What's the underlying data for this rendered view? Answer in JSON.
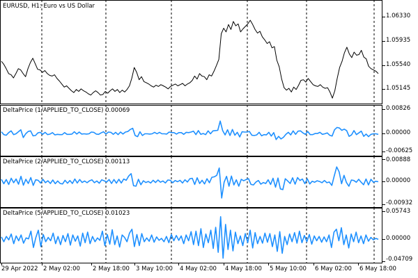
{
  "window": {
    "symbol_title": "EURUSD, H1:  Euro vs US Dollar"
  },
  "colors": {
    "price_line": "#000000",
    "indicator_line": "#1e90ff",
    "grid": "#000000",
    "background": "#ffffff"
  },
  "time_axis": {
    "labels": [
      "29 Apr 2022",
      "2 May 02:00",
      "2 May 18:00",
      "3 May 10:00",
      "4 May 02:00",
      "4 May 18:00",
      "5 May 10:00",
      "6 May 02:00",
      "6 May 18:00"
    ]
  },
  "chart_data": [
    {
      "type": "line",
      "pane": "main",
      "title": "EURUSD, H1:  Euro vs US Dollar",
      "ylim": [
        1.049,
        1.066
      ],
      "yticks": [
        "1.06330",
        "1.05935",
        "1.05540",
        "1.05145"
      ],
      "series": [
        {
          "values": [
            1.056,
            1.0555,
            1.0548,
            1.054,
            1.0538,
            1.0533,
            1.054,
            1.0548,
            1.0546,
            1.054,
            1.0535,
            1.0548,
            1.0558,
            1.0565,
            1.0556,
            1.0547,
            1.0546,
            1.0542,
            1.0545,
            1.054,
            1.0537,
            1.0536,
            1.0538,
            1.0532,
            1.0528,
            1.0523,
            1.0518,
            1.052,
            1.0516,
            1.0512,
            1.0509,
            1.0514,
            1.0511,
            1.0515,
            1.0512,
            1.051,
            1.0507,
            1.0505,
            1.0509,
            1.0512,
            1.0509,
            1.0505,
            1.0506,
            1.0511,
            1.0508,
            1.0512,
            1.0515,
            1.0511,
            1.0514,
            1.0509,
            1.0513,
            1.051,
            1.0514,
            1.052,
            1.0533,
            1.055,
            1.0542,
            1.053,
            1.0535,
            1.0527,
            1.0525,
            1.0523,
            1.052,
            1.0518,
            1.0521,
            1.0519,
            1.0522,
            1.052,
            1.0518,
            1.0515,
            1.0519,
            1.0521,
            1.0523,
            1.052,
            1.0522,
            1.0524,
            1.052,
            1.0523,
            1.0525,
            1.0529,
            1.0536,
            1.0531,
            1.054,
            1.0536,
            1.0535,
            1.053,
            1.0538,
            1.0536,
            1.0544,
            1.0553,
            1.0563,
            1.0605,
            1.0614,
            1.0608,
            1.062,
            1.0612,
            1.0625,
            1.0618,
            1.0621,
            1.0608,
            1.0613,
            1.0617,
            1.0621,
            1.0627,
            1.062,
            1.0612,
            1.0606,
            1.0609,
            1.06,
            1.0595,
            1.0589,
            1.0592,
            1.0582,
            1.0584,
            1.0562,
            1.0551,
            1.0531,
            1.0517,
            1.0513,
            1.0516,
            1.051,
            1.0518,
            1.0514,
            1.0521,
            1.0529,
            1.053,
            1.0526,
            1.0532,
            1.0527,
            1.0522,
            1.052,
            1.0519,
            1.0522,
            1.0518,
            1.0516,
            1.0517,
            1.051,
            1.05,
            1.0512,
            1.0532,
            1.055,
            1.056,
            1.0574,
            1.0583,
            1.0572,
            1.0566,
            1.0575,
            1.057,
            1.0571,
            1.0578,
            1.0567,
            1.0564,
            1.0552,
            1.0548,
            1.0546,
            1.0544,
            1.054
          ]
        }
      ]
    },
    {
      "type": "line",
      "pane": "indicator1",
      "title": "DeltaPrice (1/APPLIED_TO_CLOSE) 0.00069",
      "ylim": [
        -0.0078,
        0.0098
      ],
      "yticks": [
        "0.00826",
        "0.00000",
        "-0.00625"
      ],
      "series": [
        {
          "values": [
            0.0005,
            -0.0005,
            -0.0007,
            0.0002,
            0.0008,
            -0.0005,
            -0.0002,
            0.0005,
            0.0012,
            -0.0015,
            -0.0002,
            0.0006,
            0.0008,
            -0.0009,
            -0.0008,
            0.0001,
            0.0003,
            -0.0004,
            0.0003,
            -0.0005,
            -0.0003,
            0.0002,
            -0.0006,
            -0.0004,
            -0.0005,
            -0.0005,
            0.0002,
            -0.0004,
            -0.0004,
            -0.0003,
            0.0005,
            -0.0003,
            0.0004,
            -0.0003,
            -0.0002,
            -0.0003,
            -0.0002,
            0.0004,
            0.0003,
            -0.0003,
            -0.0004,
            0.0001,
            0.0005,
            -0.0003,
            0.0004,
            0.0003,
            -0.0004,
            0.0003,
            -0.0005,
            0.0004,
            -0.0003,
            0.0004,
            0.0006,
            0.0013,
            0.0017,
            -0.0008,
            -0.0012,
            0.0005,
            -0.0008,
            -0.0002,
            -0.0002,
            -0.0003,
            -0.0002,
            0.0003,
            -0.0002,
            0.0003,
            -0.0002,
            -0.0002,
            -0.0003,
            0.0004,
            0.0002,
            0.0002,
            -0.0003,
            0.0002,
            0.0002,
            -0.0004,
            0.0003,
            0.0002,
            0.0004,
            0.0007,
            -0.0005,
            0.0009,
            -0.0004,
            -0.0001,
            -0.0005,
            0.0008,
            -0.0002,
            0.0008,
            0.0009,
            0.001,
            0.0042,
            0.0009,
            -0.0006,
            0.0012,
            -0.0008,
            0.0013,
            -0.0007,
            0.0003,
            -0.0013,
            0.0005,
            0.0004,
            0.0004,
            0.0006,
            -0.0007,
            -0.0008,
            -0.0006,
            0.0003,
            -0.0009,
            -0.0005,
            -0.0006,
            0.0003,
            -0.001,
            0.0002,
            -0.0022,
            -0.0011,
            -0.002,
            -0.0014,
            -0.0004,
            0.0003,
            -0.0006,
            0.0008,
            -0.0004,
            0.0007,
            0.0008,
            0.0001,
            -0.0004,
            0.0006,
            -0.0005,
            -0.0005,
            -0.0001,
            -0.0001,
            0.0003,
            -0.0004,
            -0.0002,
            0.0001,
            -0.0007,
            -0.001,
            0.0012,
            0.002,
            0.0018,
            0.001,
            0.0014,
            0.0009,
            -0.0011,
            -0.0006,
            0.0009,
            -0.0005,
            0.0001,
            0.0007,
            -0.0011,
            -0.0003,
            -0.0012,
            -0.0004,
            -0.0002,
            -0.0002,
            -0.0004
          ]
        }
      ]
    },
    {
      "type": "line",
      "pane": "indicator2",
      "title": "DeltaPrice (2/APPLIED_TO_CLOSE) 0.00113",
      "ylim": [
        -0.0105,
        0.0101
      ],
      "yticks": [
        "0.00888",
        "0.00000",
        "-0.00932"
      ],
      "series": [
        {
          "values": [
            0.0008,
            -0.001,
            0.0007,
            -0.0013,
            0.0012,
            -0.0006,
            0.0009,
            -0.0012,
            0.002,
            -0.0016,
            0.0008,
            -0.0009,
            0.0015,
            -0.0017,
            0.0006,
            0.0004,
            -0.0007,
            0.0008,
            -0.0006,
            0.0002,
            -0.0009,
            0.0005,
            -0.001,
            0.0001,
            -0.0009,
            -0.0011,
            0.0004,
            -0.0008,
            0.0003,
            -0.0009,
            0.0009,
            -0.0007,
            0.0007,
            -0.0005,
            0.0001,
            -0.0006,
            0.0002,
            0.0006,
            -0.0006,
            0.0001,
            -0.0008,
            0.0006,
            0.0002,
            -0.0003,
            0.0007,
            -0.0009,
            0.0007,
            -0.0008,
            0.0008,
            -0.0007,
            0.0009,
            0.0004,
            0.0021,
            0.0031,
            -0.0018,
            -0.002,
            0.0008,
            -0.0014,
            0.0002,
            -0.0005,
            -0.0001,
            -0.0007,
            0.0004,
            -0.0005,
            0.0005,
            -0.0004,
            0.0001,
            -0.0007,
            0.0005,
            0.0004,
            -0.0006,
            0.0003,
            -0.0002,
            0.0004,
            -0.0007,
            0.0006,
            -0.0003,
            0.001,
            0.0012,
            -0.0013,
            0.0014,
            -0.0009,
            0.0004,
            -0.0011,
            0.001,
            -0.0006,
            0.0016,
            0.0018,
            0.0024,
            0.0054,
            -0.0068,
            -0.0004,
            0.002,
            -0.002,
            0.0021,
            -0.0015,
            0.0006,
            -0.002,
            0.0008,
            0.0002,
            0.0007,
            0.001,
            -0.0013,
            -0.0015,
            -0.0003,
            0.0003,
            -0.0012,
            -0.0005,
            -0.0009,
            0.0006,
            -0.0013,
            0.0012,
            -0.0024,
            0.0013,
            -0.0031,
            -0.0034,
            0.001,
            0.0001,
            -0.0009,
            0.0014,
            -0.0012,
            0.0015,
            0.0003,
            0.0009,
            -0.001,
            0.001,
            -0.0011,
            0.0,
            -0.0004,
            0.0002,
            -0.0001,
            -0.0006,
            0.0003,
            -0.0006,
            -0.0003,
            -0.0017,
            0.0022,
            0.0058,
            0.0038,
            -0.001,
            0.0024,
            -0.0005,
            -0.002,
            0.0005,
            0.0003,
            -0.0004,
            0.0008,
            -0.0004,
            -0.0014,
            0.0009,
            -0.0015,
            0.0008,
            -0.0004,
            0.0,
            -0.0002
          ]
        }
      ]
    },
    {
      "type": "line",
      "pane": "indicator3",
      "title": "DeltaPrice (5/APPLIED_TO_CLOSE) 0.01023",
      "ylim": [
        -0.051,
        0.0645
      ],
      "yticks": [
        "0.05743",
        "0.00000",
        "-0.04709"
      ],
      "series": [
        {
          "values": [
            0.004,
            -0.006,
            0.005,
            -0.002,
            0.01,
            -0.01,
            0.006,
            -0.004,
            0.008,
            -0.009,
            0.002,
            0.0,
            0.016,
            -0.018,
            0.003,
            0.018,
            -0.016,
            0.009,
            -0.006,
            0.003,
            -0.004,
            0.012,
            -0.01,
            0.005,
            -0.012,
            0.007,
            -0.006,
            0.011,
            -0.013,
            0.008,
            -0.005,
            0.006,
            -0.015,
            0.012,
            -0.008,
            0.014,
            -0.01,
            0.005,
            -0.006,
            0.002,
            -0.003,
            0.016,
            -0.014,
            0.009,
            -0.011,
            0.019,
            -0.012,
            0.006,
            -0.017,
            0.008,
            0.003,
            -0.006,
            0.012,
            0.02,
            -0.016,
            0.009,
            -0.014,
            0.011,
            -0.006,
            0.002,
            -0.005,
            0.008,
            -0.007,
            0.004,
            -0.003,
            0.001,
            -0.006,
            0.005,
            -0.008,
            0.009,
            -0.004,
            0.007,
            -0.003,
            0.006,
            -0.01,
            0.008,
            -0.004,
            0.015,
            -0.012,
            0.016,
            -0.014,
            0.021,
            -0.018,
            0.01,
            -0.008,
            0.018,
            -0.02,
            0.024,
            -0.028,
            0.046,
            -0.04,
            0.03,
            -0.022,
            0.018,
            -0.025,
            0.014,
            -0.01,
            0.006,
            -0.014,
            0.011,
            -0.008,
            0.018,
            -0.019,
            0.013,
            -0.01,
            0.005,
            -0.009,
            0.012,
            -0.007,
            0.011,
            -0.016,
            0.008,
            -0.026,
            0.015,
            -0.03,
            0.005,
            -0.012,
            0.01,
            -0.006,
            0.013,
            -0.009,
            0.016,
            -0.008,
            0.007,
            -0.006,
            0.009,
            -0.011,
            0.006,
            -0.004,
            0.005,
            -0.007,
            0.004,
            -0.006,
            0.008,
            -0.018,
            0.014,
            0.02,
            -0.004,
            0.023,
            -0.012,
            0.008,
            -0.019,
            0.01,
            -0.006,
            0.014,
            -0.008,
            0.006,
            -0.01,
            0.008,
            -0.005,
            0.003,
            -0.002,
            0.001,
            -0.001
          ]
        }
      ]
    }
  ]
}
